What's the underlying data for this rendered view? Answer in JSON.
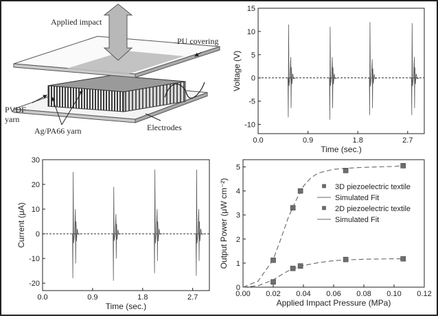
{
  "schematic": {
    "labels": {
      "applied_impact": "Applied impact",
      "pu_covering": "PU covering",
      "pvdf_line1": "PVDF",
      "pvdf_line2": "yarn",
      "ag_pa66": "Ag/PA66 yarn",
      "electrodes": "Electrodes"
    }
  },
  "chart_data": [
    {
      "type": "line",
      "panel": "top-right",
      "xlabel": "Time (sec.)",
      "ylabel": "Voltage (V)",
      "xlim": [
        0,
        3.0
      ],
      "ylim": [
        -12,
        15
      ],
      "xticks": [
        "0.0",
        "0.9",
        "1.8",
        "2.7"
      ],
      "yticks": [
        "15",
        "10",
        "5",
        "0",
        "-5",
        "-10"
      ],
      "grid": false,
      "baseline": 0,
      "pulses": [
        {
          "t": 0.55,
          "peak": 11.5,
          "trough": -8.5,
          "secondary_peak": 4.5,
          "secondary_trough": -6.5
        },
        {
          "t": 1.3,
          "peak": 11.0,
          "trough": -9.0,
          "secondary_peak": 4.5,
          "secondary_trough": -6.5
        },
        {
          "t": 2.02,
          "peak": 12.0,
          "trough": -8.0,
          "secondary_peak": 4.0,
          "secondary_trough": -6.5
        },
        {
          "t": 2.78,
          "peak": 11.8,
          "trough": -8.0,
          "secondary_peak": 4.5,
          "secondary_trough": -6.5
        }
      ]
    },
    {
      "type": "line",
      "panel": "bottom-left",
      "xlabel": "Time (sec.)",
      "ylabel": "Current (μA)",
      "xlim": [
        0,
        3.0
      ],
      "ylim": [
        -23,
        30
      ],
      "xticks": [
        "0.0",
        "0.9",
        "1.8",
        "2.7"
      ],
      "yticks": [
        "30",
        "20",
        "10",
        "0",
        "-10",
        "-20"
      ],
      "grid": false,
      "baseline": 0,
      "pulses": [
        {
          "t": 0.55,
          "peak": 25.0,
          "trough": -18.0,
          "secondary_peak": 10.0,
          "secondary_trough": -12.0
        },
        {
          "t": 1.28,
          "peak": 19.0,
          "trough": -19.0,
          "secondary_peak": 8.0,
          "secondary_trough": -10.0
        },
        {
          "t": 2.02,
          "peak": 26.0,
          "trough": -16.0,
          "secondary_peak": 10.0,
          "secondary_trough": -11.0
        },
        {
          "t": 2.77,
          "peak": 26.0,
          "trough": -17.0,
          "secondary_peak": 10.0,
          "secondary_trough": -11.0
        }
      ]
    },
    {
      "type": "scatter",
      "panel": "bottom-right",
      "xlabel": "Applied Impact Pressure (MPa)",
      "ylabel": "Output Power (μW cm⁻²)",
      "xlim": [
        0,
        0.12
      ],
      "ylim": [
        0,
        5.3
      ],
      "xticks": [
        "0.00",
        "0.02",
        "0.04",
        "0.06",
        "0.08",
        "0.10",
        "0.12"
      ],
      "yticks": [
        "5",
        "4",
        "3",
        "2",
        "1",
        "0"
      ],
      "legend_placement": "center-right",
      "series": [
        {
          "name": "3D piezoelectric textile",
          "x": [
            0.02,
            0.033,
            0.038,
            0.068,
            0.106
          ],
          "y": [
            1.12,
            3.3,
            4.0,
            4.85,
            5.05
          ]
        },
        {
          "name": "Simulated Fit",
          "fit_of": "3D piezoelectric textile",
          "x": [
            0.0,
            0.01,
            0.02,
            0.025,
            0.03,
            0.035,
            0.04,
            0.045,
            0.05,
            0.06,
            0.07,
            0.08,
            0.09,
            0.1,
            0.106
          ],
          "y": [
            0.0,
            0.25,
            1.15,
            2.0,
            2.9,
            3.6,
            4.2,
            4.55,
            4.75,
            4.9,
            4.95,
            4.98,
            5.0,
            5.02,
            5.05
          ]
        },
        {
          "name": "2D piezoelectric textile",
          "x": [
            0.02,
            0.033,
            0.038,
            0.068,
            0.106
          ],
          "y": [
            0.22,
            0.78,
            0.88,
            1.15,
            1.18
          ]
        },
        {
          "name": "Simulated Fit",
          "fit_of": "2D piezoelectric textile",
          "x": [
            0.0,
            0.01,
            0.02,
            0.025,
            0.03,
            0.035,
            0.04,
            0.05,
            0.06,
            0.07,
            0.08,
            0.09,
            0.1,
            0.106
          ],
          "y": [
            0.0,
            0.06,
            0.3,
            0.5,
            0.68,
            0.8,
            0.9,
            1.02,
            1.1,
            1.14,
            1.16,
            1.17,
            1.18,
            1.18
          ]
        }
      ]
    }
  ]
}
